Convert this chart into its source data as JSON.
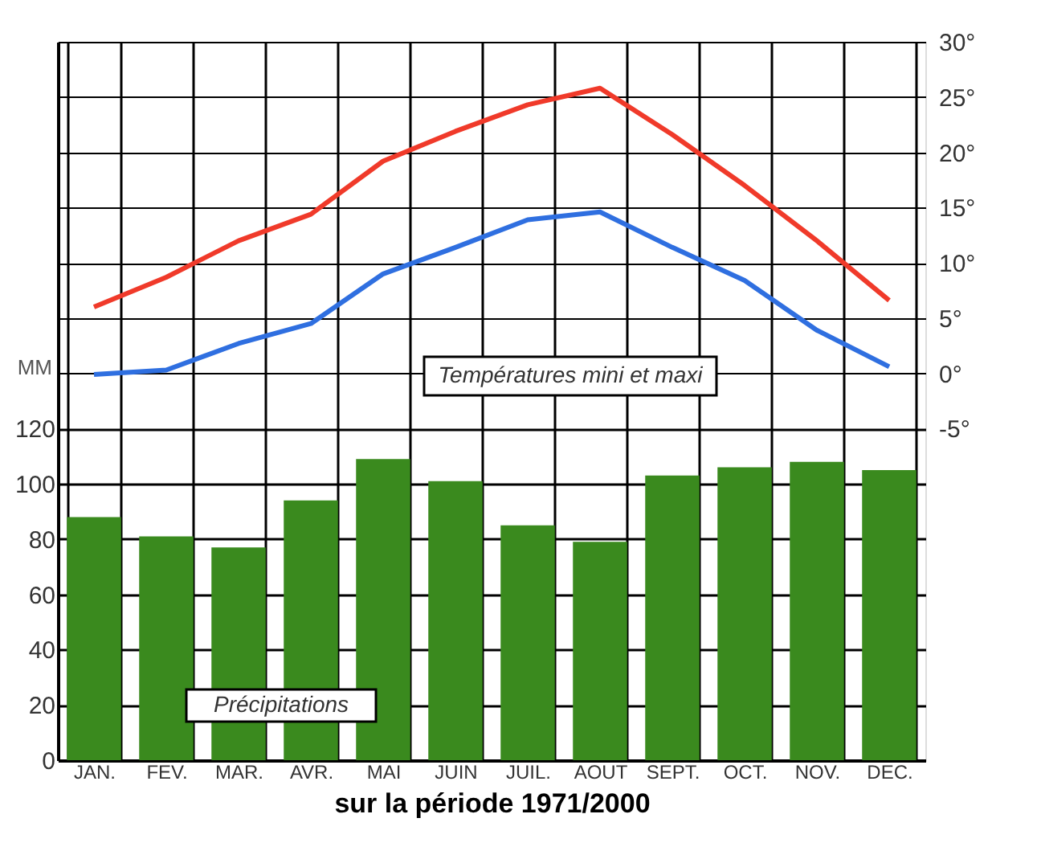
{
  "chart_data": {
    "type": "bar",
    "xlabel": "sur la période 1971/2000",
    "ylabel": "MM",
    "categories": [
      "JAN.",
      "FEV.",
      "MAR.",
      "AVR.",
      "MAI",
      "JUIN",
      "JUIL.",
      "AOUT",
      "SEPT.",
      "OCT.",
      "NOV.",
      "DEC."
    ],
    "ylim": [
      0,
      260
    ],
    "yticks": [
      0,
      20,
      40,
      60,
      80,
      100,
      120
    ],
    "y2lim": [
      -35,
      30
    ],
    "y2ticks": [
      {
        "value": -5,
        "label": "-5°"
      },
      {
        "value": 0,
        "label": "0°"
      },
      {
        "value": 5,
        "label": "5°"
      },
      {
        "value": 10,
        "label": "10°"
      },
      {
        "value": 15,
        "label": "15°"
      },
      {
        "value": 20,
        "label": "20°"
      },
      {
        "value": 25,
        "label": "25°"
      },
      {
        "value": 30,
        "label": "30°"
      }
    ],
    "series": [
      {
        "name": "Précipitations",
        "color": "#3a8a1e",
        "values": [
          88,
          81,
          77,
          94,
          109,
          101,
          85,
          79,
          103,
          106,
          108,
          105
        ]
      },
      {
        "type": "line",
        "axis": "y2",
        "color": "#f03a2a",
        "values": [
          6.0,
          8.7,
          12.0,
          14.4,
          19.2,
          21.9,
          24.3,
          25.8,
          21.6,
          17.0,
          12.0,
          6.6
        ]
      },
      {
        "type": "line",
        "axis": "y2",
        "color": "#2f6fe0",
        "values": [
          -0.1,
          0.3,
          2.7,
          4.5,
          9.0,
          11.4,
          13.9,
          14.6,
          11.4,
          8.4,
          3.9,
          0.6
        ]
      }
    ],
    "annotations": [
      "Températures mini et maxi"
    ],
    "grid": true,
    "marker": "none",
    "line_style": "solid"
  }
}
